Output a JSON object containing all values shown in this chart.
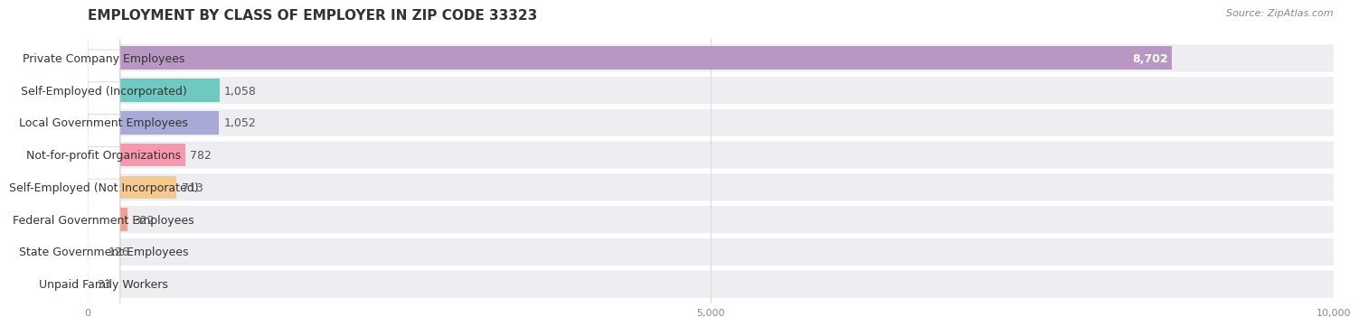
{
  "title": "EMPLOYMENT BY CLASS OF EMPLOYER IN ZIP CODE 33323",
  "source": "Source: ZipAtlas.com",
  "categories": [
    "Private Company Employees",
    "Self-Employed (Incorporated)",
    "Local Government Employees",
    "Not-for-profit Organizations",
    "Self-Employed (Not Incorporated)",
    "Federal Government Employees",
    "State Government Employees",
    "Unpaid Family Workers"
  ],
  "values": [
    8702,
    1058,
    1052,
    782,
    713,
    322,
    126,
    33
  ],
  "bar_colors": [
    "#b897c2",
    "#6fc9c0",
    "#a9a9d8",
    "#f898b0",
    "#f5c990",
    "#f4a090",
    "#90b8e8",
    "#c0a8d8"
  ],
  "row_bg_color": "#ededf2",
  "label_bg_color": "#ffffff",
  "xlim": [
    0,
    10000
  ],
  "xticks": [
    0,
    5000,
    10000
  ],
  "xtick_labels": [
    "0",
    "5,000",
    "10,000"
  ],
  "bg_color": "#ffffff",
  "title_fontsize": 11,
  "bar_label_fontsize": 9,
  "value_fontsize": 9,
  "source_fontsize": 8,
  "title_color": "#333333",
  "tick_color": "#999999",
  "grid_color": "#dddddd"
}
